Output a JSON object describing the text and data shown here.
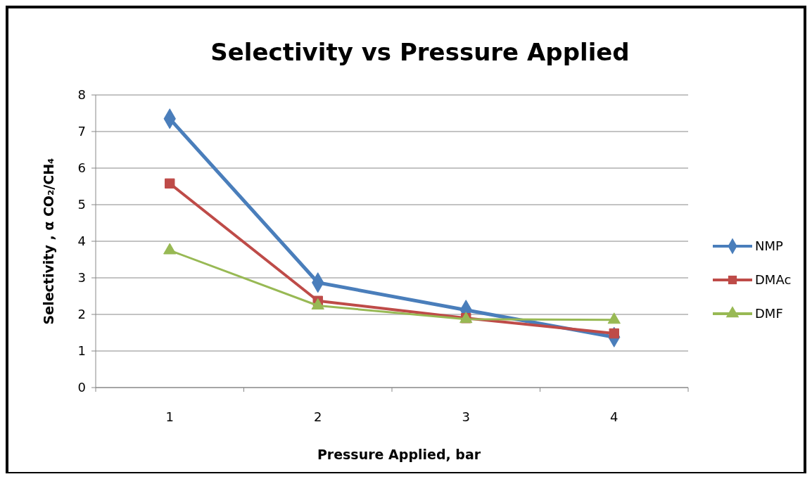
{
  "chart_data": {
    "type": "line",
    "title": "Selectivity vs Pressure Applied",
    "xlabel": "Pressure Applied, bar",
    "ylabel": "Selectivity , α CO₂/CH₄",
    "categories": [
      "1",
      "2",
      "3",
      "4"
    ],
    "series": [
      {
        "name": "NMP",
        "color": "#4a7ebb",
        "marker": "diamond",
        "values": [
          7.35,
          2.87,
          2.12,
          1.38
        ]
      },
      {
        "name": "DMAc",
        "color": "#be4b48",
        "marker": "square",
        "values": [
          5.58,
          2.37,
          1.9,
          1.48
        ]
      },
      {
        "name": "DMF",
        "color": "#98b954",
        "marker": "triangle",
        "values": [
          3.75,
          2.24,
          1.87,
          1.85
        ]
      }
    ],
    "ylim": [
      0,
      8
    ],
    "yticks": [
      0,
      1,
      2,
      3,
      4,
      5,
      6,
      7,
      8
    ],
    "grid": "y",
    "legend": "right",
    "line_style": "solid"
  }
}
